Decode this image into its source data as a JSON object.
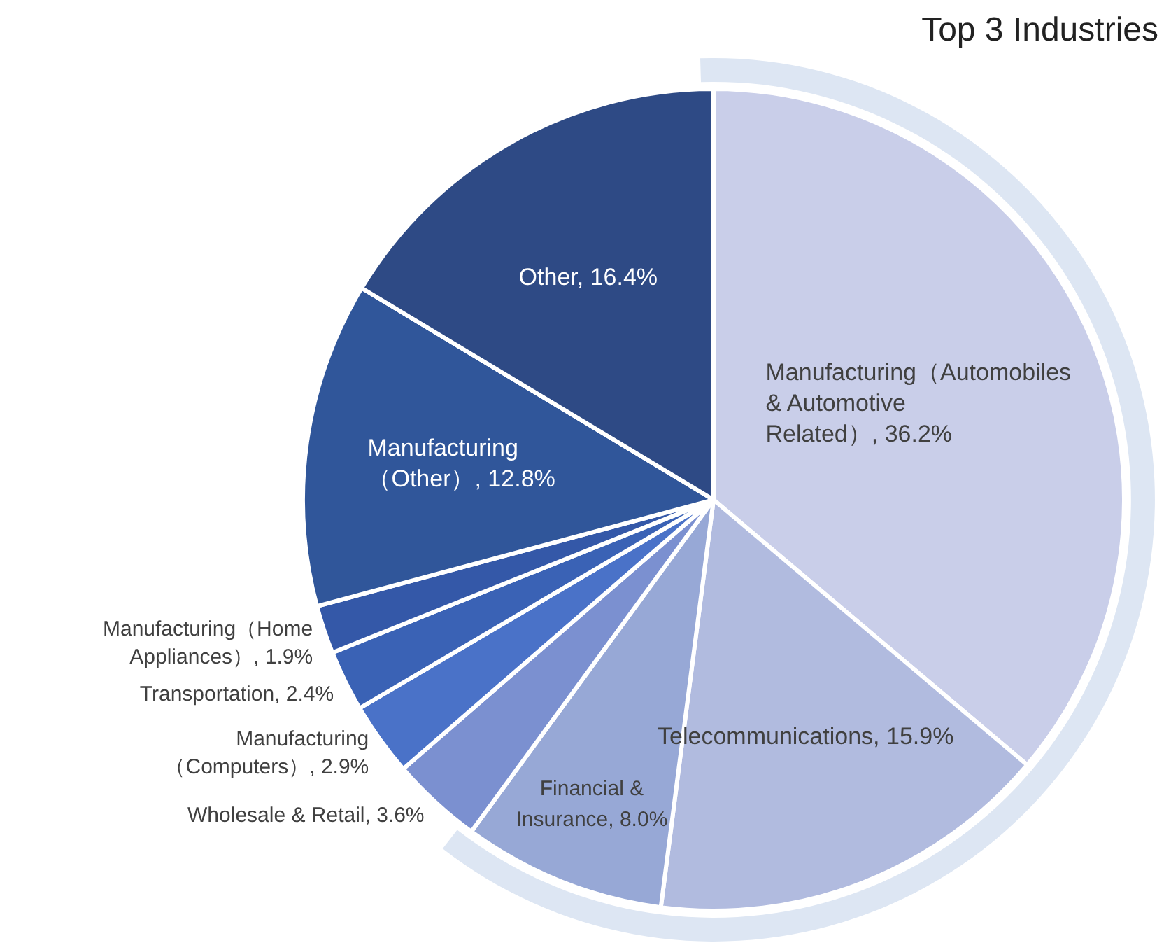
{
  "chart_data": {
    "type": "pie",
    "categories": [
      "Manufacturing（Automobiles & Automotive Related）",
      "Telecommunications",
      "Financial & Insurance",
      "Wholesale & Retail",
      "Manufacturing（Computers）",
      "Transportation",
      "Manufacturing（Home Appliances）",
      "Manufacturing（Other）",
      "Other"
    ],
    "values": [
      36.2,
      15.9,
      8.0,
      3.6,
      2.9,
      2.4,
      1.9,
      12.8,
      16.4
    ],
    "colors": [
      "#c9cee9",
      "#b1bbdf",
      "#97a8d6",
      "#7b90d0",
      "#4a72c8",
      "#3a62b5",
      "#3458a8",
      "#30569a",
      "#2e4a85"
    ],
    "value_labels": [
      "36.2%",
      "15.9%",
      "8.0%",
      "3.6%",
      "2.9%",
      "2.4%",
      "1.9%",
      "12.8%",
      "16.4%"
    ],
    "annotations": [
      "Top 3 Industries"
    ],
    "legend": false
  }
}
